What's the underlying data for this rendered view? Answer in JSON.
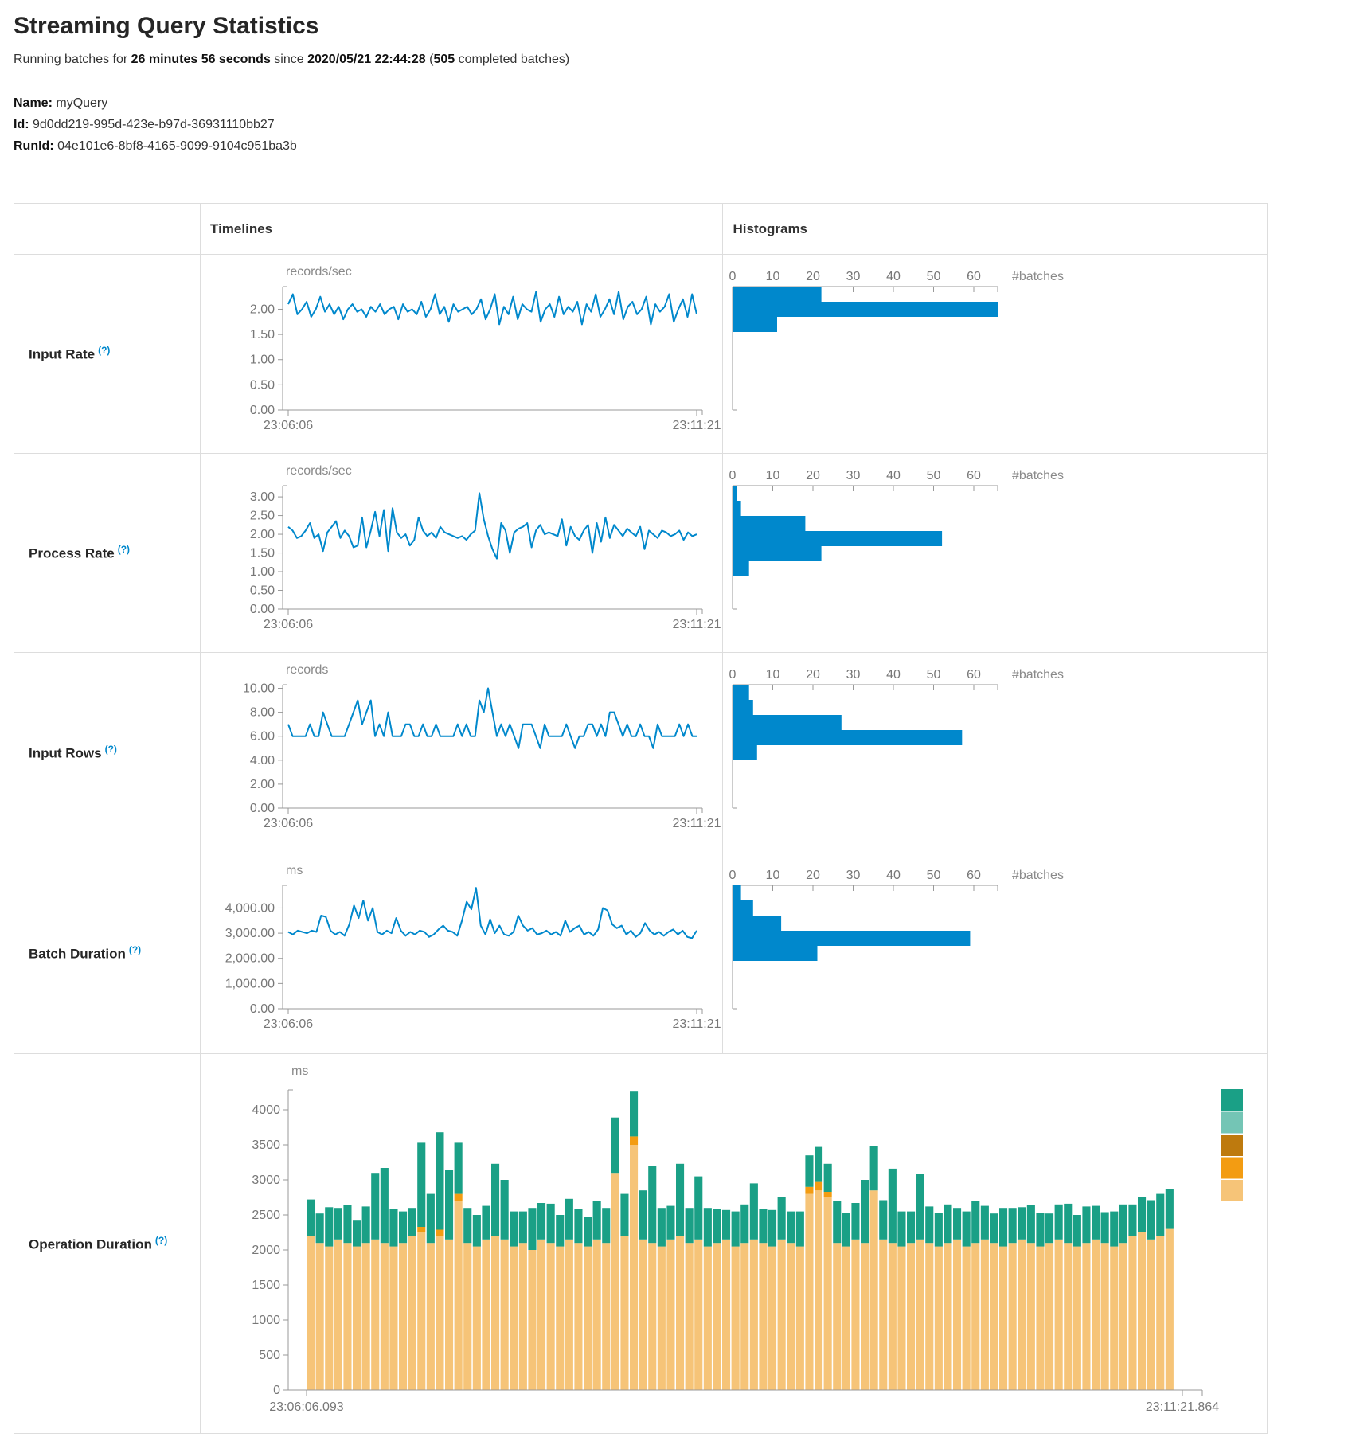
{
  "page": {
    "title": "Streaming Query Statistics",
    "subtitle": {
      "prefix": "Running batches for ",
      "duration": "26 minutes 56 seconds",
      "mid": " since ",
      "start_time": "2020/05/21 22:44:28",
      "paren_open": " (",
      "completed_batches": "505",
      "suffix": " completed batches)"
    },
    "name_label": "Name:",
    "name_value": "myQuery",
    "id_label": "Id:",
    "id_value": "9d0dd219-995d-423e-b97d-36931110bb27",
    "runid_label": "RunId:",
    "runid_value": "04e101e6-8bf8-4165-9099-9104c951ba3b"
  },
  "table": {
    "headers": {
      "timelines": "Timelines",
      "histograms": "Histograms"
    },
    "rows": [
      {
        "label": "Input Rate",
        "help": "(?)"
      },
      {
        "label": "Process Rate",
        "help": "(?)"
      },
      {
        "label": "Input Rows",
        "help": "(?)"
      },
      {
        "label": "Batch Duration",
        "help": "(?)"
      },
      {
        "label": "Operation Duration",
        "help": "(?)"
      }
    ]
  },
  "colors": {
    "line_blue": "#0088cc",
    "hist_blue": "#0088cc",
    "axis_gray": "#999999",
    "tick_text": "#777777",
    "help_blue": "#0088cc"
  },
  "chart_data": [
    {
      "type": "line",
      "title": "Input Rate",
      "unit": "records/sec",
      "x_start": "23:06:06",
      "x_end": "23:11:21",
      "ylim": [
        0,
        2.45
      ],
      "y_ticks": [
        {
          "v": 0,
          "label": "0.00"
        },
        {
          "v": 0.5,
          "label": "0.50"
        },
        {
          "v": 1,
          "label": "1.00"
        },
        {
          "v": 1.5,
          "label": "1.50"
        },
        {
          "v": 2,
          "label": "2.00"
        }
      ],
      "values": [
        2.1,
        2.3,
        1.9,
        2.0,
        2.15,
        1.85,
        2.0,
        2.25,
        1.95,
        2.1,
        1.9,
        2.05,
        1.8,
        2.0,
        2.1,
        1.95,
        2.0,
        1.85,
        2.05,
        1.95,
        2.1,
        1.9,
        2.0,
        2.05,
        1.8,
        2.1,
        1.95,
        2.0,
        1.9,
        2.15,
        1.85,
        2.0,
        2.3,
        1.9,
        2.05,
        1.75,
        2.1,
        1.95,
        2.0,
        2.05,
        1.9,
        2.0,
        2.2,
        1.8,
        2.0,
        2.3,
        1.7,
        2.05,
        1.9,
        2.25,
        1.8,
        2.1,
        2.0,
        1.95,
        2.35,
        1.75,
        2.0,
        2.1,
        1.85,
        2.25,
        1.9,
        2.05,
        1.95,
        2.15,
        1.7,
        2.1,
        1.95,
        2.3,
        1.85,
        2.0,
        2.2,
        1.9,
        2.35,
        1.8,
        2.05,
        2.15,
        1.9,
        2.0,
        2.25,
        1.7,
        2.1,
        1.95,
        2.05,
        2.3,
        1.75,
        2.0,
        2.2,
        1.85,
        2.3,
        1.9
      ],
      "histogram": {
        "x_ticks": [
          0,
          10,
          20,
          30,
          40,
          50,
          60
        ],
        "xlabel": "#batches",
        "bin_counts": [
          22,
          66,
          11
        ]
      }
    },
    {
      "type": "line",
      "title": "Process Rate",
      "unit": "records/sec",
      "x_start": "23:06:06",
      "x_end": "23:11:21",
      "ylim": [
        0,
        3.3
      ],
      "y_ticks": [
        {
          "v": 0,
          "label": "0.00"
        },
        {
          "v": 0.5,
          "label": "0.50"
        },
        {
          "v": 1,
          "label": "1.00"
        },
        {
          "v": 1.5,
          "label": "1.50"
        },
        {
          "v": 2,
          "label": "2.00"
        },
        {
          "v": 2.5,
          "label": "2.50"
        },
        {
          "v": 3,
          "label": "3.00"
        }
      ],
      "values": [
        2.2,
        2.1,
        1.9,
        1.95,
        2.1,
        2.3,
        1.9,
        2.0,
        1.55,
        2.05,
        2.2,
        2.35,
        1.9,
        2.1,
        1.95,
        1.65,
        1.7,
        2.45,
        1.65,
        2.1,
        2.6,
        1.95,
        2.65,
        1.55,
        2.7,
        2.05,
        1.9,
        2.0,
        1.7,
        1.85,
        2.45,
        2.1,
        1.95,
        2.05,
        1.9,
        2.2,
        2.05,
        2.0,
        1.95,
        1.9,
        1.95,
        1.85,
        2.0,
        2.1,
        3.1,
        2.4,
        1.95,
        1.6,
        1.35,
        2.3,
        2.1,
        1.5,
        2.05,
        2.15,
        2.2,
        2.3,
        1.65,
        2.1,
        2.25,
        2.0,
        2.05,
        2.0,
        1.95,
        2.4,
        1.7,
        2.2,
        1.95,
        1.85,
        2.1,
        2.25,
        1.5,
        2.3,
        1.8,
        2.45,
        1.9,
        2.25,
        2.1,
        1.95,
        2.15,
        2.05,
        1.95,
        2.2,
        1.6,
        2.1,
        2.0,
        1.9,
        2.1,
        2.05,
        1.95,
        2.0,
        2.1,
        1.85,
        2.05,
        1.95,
        2.0
      ],
      "histogram": {
        "x_ticks": [
          0,
          10,
          20,
          30,
          40,
          50,
          60
        ],
        "xlabel": "#batches",
        "bin_counts": [
          1,
          2,
          18,
          52,
          22,
          4
        ]
      }
    },
    {
      "type": "line",
      "title": "Input Rows",
      "unit": "records",
      "x_start": "23:06:06",
      "x_end": "23:11:21",
      "ylim": [
        0,
        10.3
      ],
      "y_ticks": [
        {
          "v": 0,
          "label": "0.00"
        },
        {
          "v": 2,
          "label": "2.00"
        },
        {
          "v": 4,
          "label": "4.00"
        },
        {
          "v": 6,
          "label": "6.00"
        },
        {
          "v": 8,
          "label": "8.00"
        },
        {
          "v": 10,
          "label": "10.00"
        }
      ],
      "values": [
        7,
        6,
        6,
        6,
        6,
        7,
        6,
        6,
        8,
        7,
        6,
        6,
        6,
        6,
        7,
        8,
        9,
        7,
        8,
        9,
        6,
        7,
        6,
        8,
        6,
        6,
        6,
        7,
        7,
        6,
        6,
        7,
        6,
        6,
        7,
        6,
        6,
        6,
        6,
        7,
        6,
        7,
        6,
        6,
        9,
        8,
        10,
        8,
        6,
        7,
        6,
        7,
        6,
        5,
        7,
        7,
        7,
        6,
        5,
        7,
        6,
        6,
        6,
        6,
        7,
        6,
        5,
        6,
        6,
        7,
        7,
        6,
        7,
        6,
        8,
        8,
        7,
        6,
        7,
        6,
        6,
        7,
        6,
        6,
        5,
        7,
        6,
        6,
        6,
        6,
        7,
        6,
        7,
        6,
        6
      ],
      "histogram": {
        "x_ticks": [
          0,
          10,
          20,
          30,
          40,
          50,
          60
        ],
        "xlabel": "#batches",
        "bin_counts": [
          4,
          5,
          27,
          57,
          6
        ]
      }
    },
    {
      "type": "line",
      "title": "Batch Duration",
      "unit": "ms",
      "x_start": "23:06:06",
      "x_end": "23:11:21",
      "ylim": [
        0,
        4900
      ],
      "y_ticks": [
        {
          "v": 0,
          "label": "0.00"
        },
        {
          "v": 1000,
          "label": "1,000.00"
        },
        {
          "v": 2000,
          "label": "2,000.00"
        },
        {
          "v": 3000,
          "label": "3,000.00"
        },
        {
          "v": 4000,
          "label": "4,000.00"
        }
      ],
      "values": [
        3050,
        2950,
        3100,
        3050,
        3000,
        3100,
        3050,
        3700,
        3650,
        3100,
        2950,
        3050,
        2900,
        3350,
        4100,
        3600,
        4300,
        3500,
        4000,
        3050,
        2950,
        3100,
        3000,
        3600,
        3100,
        2900,
        3050,
        2950,
        3100,
        3050,
        2850,
        2950,
        3150,
        3300,
        3100,
        3050,
        2900,
        3500,
        4250,
        3950,
        4800,
        3300,
        2950,
        3550,
        3000,
        3300,
        2950,
        2900,
        3050,
        3700,
        3300,
        3100,
        3200,
        2950,
        3000,
        3100,
        2950,
        3050,
        2900,
        3500,
        3050,
        3200,
        3300,
        2950,
        3050,
        2900,
        3150,
        4000,
        3900,
        3350,
        3200,
        3300,
        2950,
        3100,
        2850,
        3000,
        3400,
        3100,
        2950,
        3050,
        2900,
        3050,
        3150,
        2950,
        3100,
        2850,
        2800,
        3100
      ],
      "histogram": {
        "x_ticks": [
          0,
          10,
          20,
          30,
          40,
          50,
          60
        ],
        "xlabel": "#batches",
        "bin_counts": [
          2,
          5,
          12,
          59,
          21
        ]
      }
    },
    {
      "type": "stacked-bar",
      "title": "Operation Duration",
      "unit": "ms",
      "x_start": "23:06:06.093",
      "x_end": "23:11:21.864",
      "ylim": [
        0,
        4284
      ],
      "y_ticks": [
        {
          "v": 0,
          "label": "0"
        },
        {
          "v": 500,
          "label": "500"
        },
        {
          "v": 1000,
          "label": "1000"
        },
        {
          "v": 1500,
          "label": "1500"
        },
        {
          "v": 2000,
          "label": "2000"
        },
        {
          "v": 2500,
          "label": "2500"
        },
        {
          "v": 3000,
          "label": "3000"
        },
        {
          "v": 3500,
          "label": "3500"
        },
        {
          "v": 4000,
          "label": "4000"
        }
      ],
      "series_colors": {
        "bottom": "#F6C478",
        "middle": "#F39C12",
        "top": "#1AA086"
      },
      "legend_colors": [
        "#1AA086",
        "#74C5B5",
        "#BE7A0E",
        "#F39C12",
        "#F6C478"
      ],
      "bars": [
        [
          2200,
          0,
          520
        ],
        [
          2100,
          0,
          420
        ],
        [
          2050,
          0,
          560
        ],
        [
          2150,
          0,
          450
        ],
        [
          2100,
          0,
          540
        ],
        [
          2050,
          0,
          380
        ],
        [
          2100,
          0,
          520
        ],
        [
          2150,
          0,
          950
        ],
        [
          2100,
          0,
          1070
        ],
        [
          2050,
          0,
          530
        ],
        [
          2100,
          0,
          450
        ],
        [
          2200,
          0,
          400
        ],
        [
          2250,
          80,
          1200
        ],
        [
          2100,
          0,
          700
        ],
        [
          2200,
          90,
          1390
        ],
        [
          2150,
          0,
          990
        ],
        [
          2700,
          100,
          730
        ],
        [
          2100,
          0,
          500
        ],
        [
          2050,
          0,
          450
        ],
        [
          2150,
          0,
          480
        ],
        [
          2200,
          0,
          1030
        ],
        [
          2150,
          0,
          850
        ],
        [
          2050,
          0,
          500
        ],
        [
          2100,
          0,
          450
        ],
        [
          2000,
          0,
          600
        ],
        [
          2150,
          0,
          520
        ],
        [
          2100,
          0,
          560
        ],
        [
          2050,
          0,
          450
        ],
        [
          2150,
          0,
          580
        ],
        [
          2100,
          0,
          480
        ],
        [
          2050,
          0,
          420
        ],
        [
          2150,
          0,
          550
        ],
        [
          2100,
          0,
          500
        ],
        [
          3100,
          0,
          790
        ],
        [
          2200,
          0,
          600
        ],
        [
          3500,
          120,
          650
        ],
        [
          2150,
          0,
          700
        ],
        [
          2100,
          0,
          1100
        ],
        [
          2050,
          0,
          550
        ],
        [
          2150,
          0,
          480
        ],
        [
          2200,
          0,
          1030
        ],
        [
          2100,
          0,
          500
        ],
        [
          2150,
          0,
          900
        ],
        [
          2050,
          0,
          550
        ],
        [
          2100,
          0,
          480
        ],
        [
          2150,
          0,
          420
        ],
        [
          2050,
          0,
          500
        ],
        [
          2100,
          0,
          550
        ],
        [
          2150,
          0,
          800
        ],
        [
          2100,
          0,
          480
        ],
        [
          2050,
          0,
          520
        ],
        [
          2150,
          0,
          600
        ],
        [
          2100,
          0,
          450
        ],
        [
          2050,
          0,
          500
        ],
        [
          2800,
          100,
          450
        ],
        [
          2850,
          120,
          500
        ],
        [
          2750,
          80,
          400
        ],
        [
          2100,
          0,
          600
        ],
        [
          2050,
          0,
          480
        ],
        [
          2150,
          0,
          520
        ],
        [
          2100,
          0,
          900
        ],
        [
          2850,
          0,
          630
        ],
        [
          2150,
          0,
          560
        ],
        [
          2100,
          0,
          1060
        ],
        [
          2050,
          0,
          500
        ],
        [
          2100,
          0,
          450
        ],
        [
          2150,
          0,
          930
        ],
        [
          2100,
          0,
          520
        ],
        [
          2050,
          0,
          480
        ],
        [
          2100,
          0,
          550
        ],
        [
          2150,
          0,
          450
        ],
        [
          2050,
          0,
          500
        ],
        [
          2100,
          0,
          600
        ],
        [
          2150,
          0,
          480
        ],
        [
          2100,
          0,
          420
        ],
        [
          2050,
          0,
          550
        ],
        [
          2100,
          0,
          500
        ],
        [
          2150,
          0,
          460
        ],
        [
          2100,
          0,
          540
        ],
        [
          2050,
          0,
          480
        ],
        [
          2100,
          0,
          420
        ],
        [
          2150,
          0,
          500
        ],
        [
          2100,
          0,
          560
        ],
        [
          2050,
          0,
          450
        ],
        [
          2100,
          0,
          520
        ],
        [
          2150,
          0,
          480
        ],
        [
          2100,
          0,
          440
        ],
        [
          2050,
          0,
          500
        ],
        [
          2100,
          0,
          550
        ],
        [
          2200,
          0,
          450
        ],
        [
          2250,
          0,
          500
        ],
        [
          2150,
          0,
          560
        ],
        [
          2200,
          0,
          600
        ],
        [
          2300,
          0,
          570
        ]
      ]
    }
  ]
}
